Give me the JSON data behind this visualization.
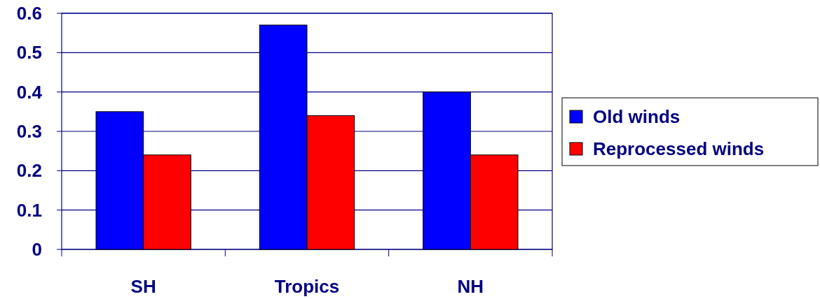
{
  "chart_data": {
    "type": "bar",
    "categories": [
      "SH",
      "Tropics",
      "NH"
    ],
    "series": [
      {
        "name": "Old winds",
        "color": "#0000ff",
        "values": [
          0.35,
          0.57,
          0.4
        ]
      },
      {
        "name": "Reprocessed winds",
        "color": "#ff0000",
        "values": [
          0.24,
          0.34,
          0.24
        ]
      }
    ],
    "ylim": [
      0,
      0.6
    ],
    "yticks": [
      0,
      0.1,
      0.2,
      0.3,
      0.4,
      0.5,
      0.6
    ],
    "grid": "y",
    "legend": "right"
  }
}
